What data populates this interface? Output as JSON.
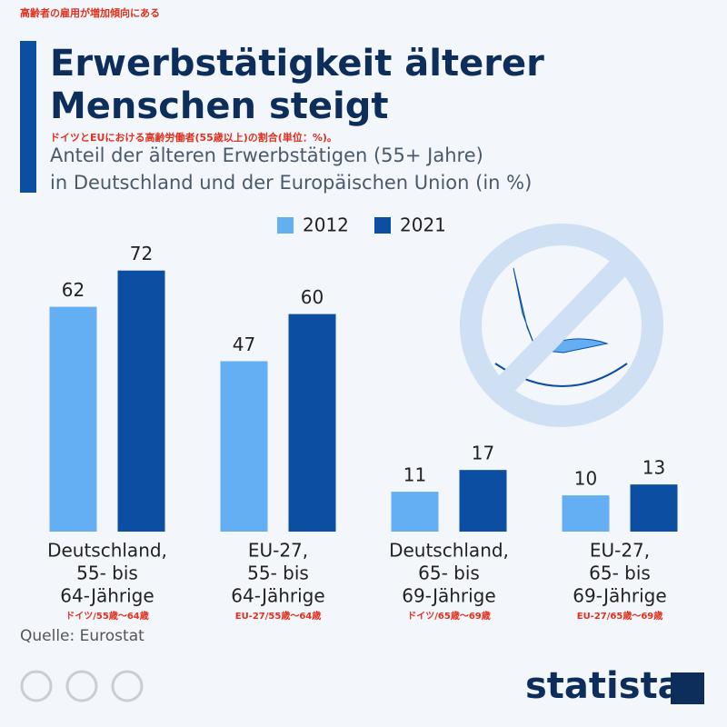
{
  "chart_data": {
    "type": "bar",
    "top_note": "高齢者の雇用が増加傾向にある",
    "title": [
      "Erwerbstätigkeit älterer",
      "Menschen steigt"
    ],
    "subtitle_note": "ドイツとEUにおける高齢労働者(55歳以上)の割合(単位：%)。",
    "subtitle": [
      "Anteil der älteren Erwerbstätigen (55+ Jahre)",
      "in Deutschland und der Europäischen Union (in %)"
    ],
    "categories": [
      [
        "Deutschland,",
        "55- bis",
        "64-Jährige"
      ],
      [
        "EU-27,",
        "55- bis",
        "64-Jährige"
      ],
      [
        "Deutschland,",
        "65- bis",
        "69-Jährige"
      ],
      [
        "EU-27,",
        "65- bis",
        "69-Jährige"
      ]
    ],
    "category_notes": [
      "ドイツ/55歳〜64歳",
      "EU-27/55歳〜64歳",
      "ドイツ/65歳〜69歳",
      "EU-27/65歳〜69歳"
    ],
    "series": [
      {
        "name": "2012",
        "color": "#64aff3",
        "values": [
          62,
          47,
          11,
          10
        ]
      },
      {
        "name": "2021",
        "color": "#0b4ea2",
        "values": [
          72,
          60,
          17,
          13
        ]
      }
    ],
    "source": "Quelle: Eurostat",
    "logo": "statista"
  }
}
